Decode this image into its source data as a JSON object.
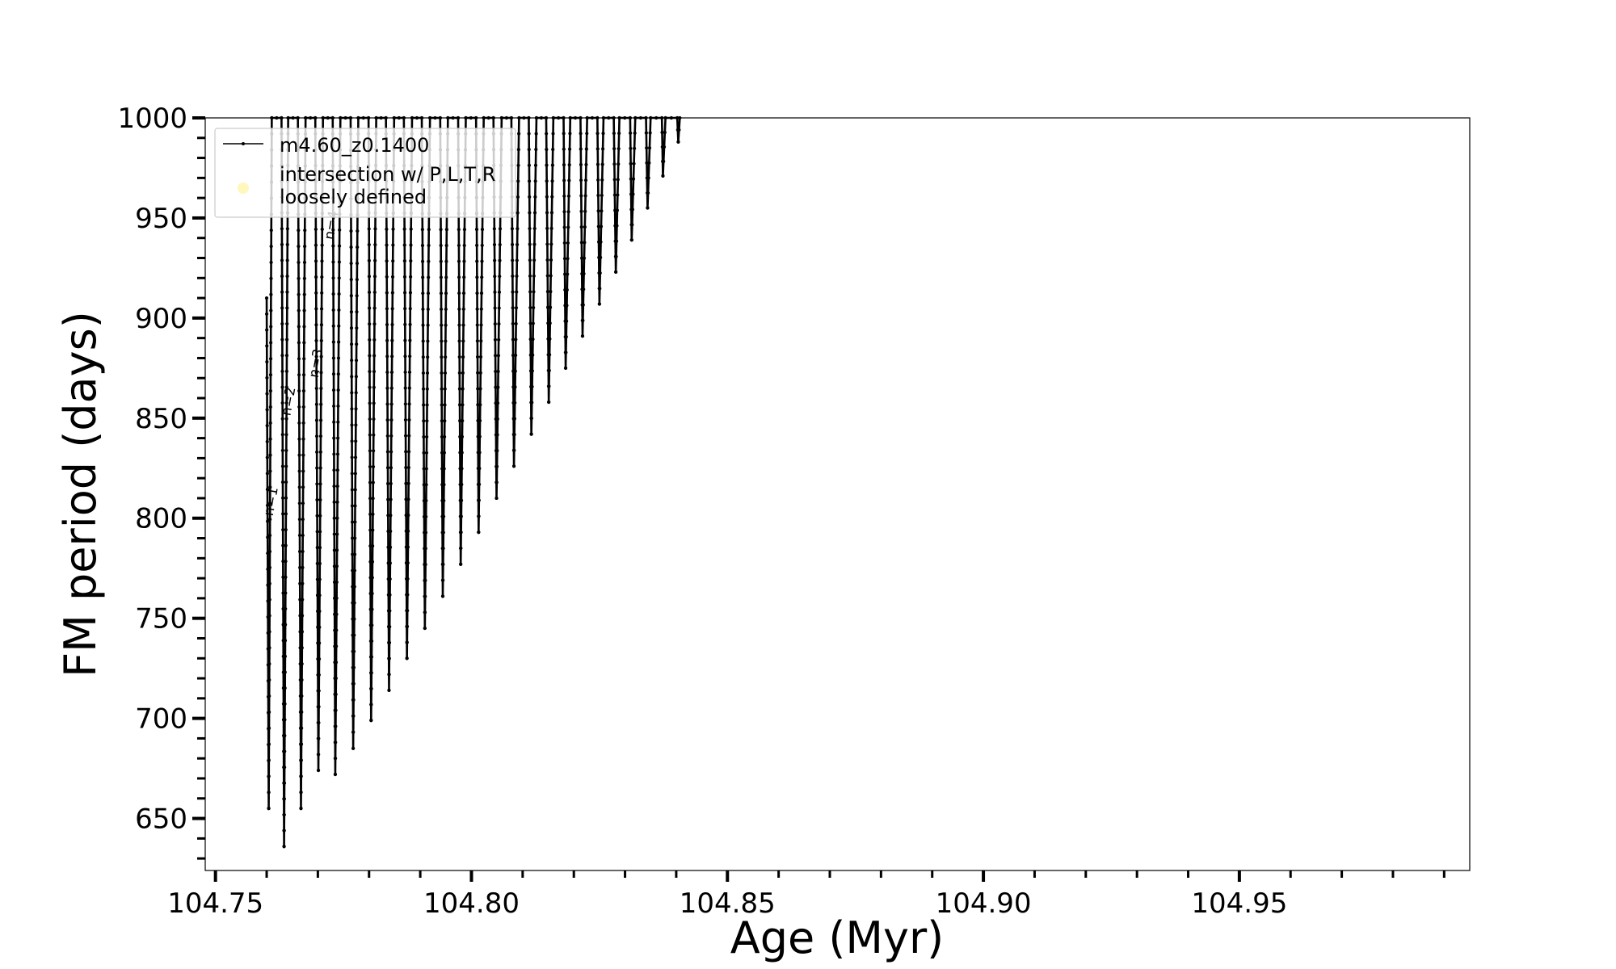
{
  "chart_data": {
    "type": "line",
    "title": "",
    "xlabel": "Age (Myr)",
    "ylabel": "FM period (days)",
    "xlim": [
      104.748,
      104.995
    ],
    "ylim": [
      624,
      1000
    ],
    "x_ticks": [
      104.75,
      104.8,
      104.85,
      104.9,
      104.95
    ],
    "x_tick_labels": [
      "104.75",
      "104.80",
      "104.85",
      "104.90",
      "104.95"
    ],
    "y_ticks": [
      650,
      700,
      750,
      800,
      850,
      900,
      950,
      1000
    ],
    "y_tick_labels": [
      "650",
      "700",
      "750",
      "800",
      "850",
      "900",
      "950",
      "1000"
    ],
    "grid": false,
    "legend_position": "top-left",
    "legend": [
      {
        "label": "m4.60_z0.1400",
        "marker": "line-dot",
        "color": "#000000"
      },
      {
        "label": "intersection w/ P,L,T,R\nloosely defined",
        "marker": "circle",
        "color": "#fff6b0"
      }
    ],
    "series": [
      {
        "name": "m4.60_z0.1400",
        "color": "#000000",
        "points": [
          [
            104.76,
            910
          ],
          [
            104.7604,
            655
          ],
          [
            104.761,
            1000
          ],
          [
            104.7629,
            1000
          ],
          [
            104.7634,
            636
          ],
          [
            104.7642,
            1000
          ],
          [
            104.7661,
            1000
          ],
          [
            104.7667,
            655
          ],
          [
            104.7676,
            1000
          ],
          [
            104.7695,
            1000
          ],
          [
            104.7701,
            674
          ],
          [
            104.771,
            1000
          ],
          [
            104.7729,
            1000
          ],
          [
            104.7734,
            672
          ],
          [
            104.7744,
            1000
          ],
          [
            104.7764,
            1000
          ],
          [
            104.7769,
            685
          ],
          [
            104.7779,
            1000
          ],
          [
            104.7799,
            1000
          ],
          [
            104.7804,
            699
          ],
          [
            104.7814,
            1000
          ],
          [
            104.7833,
            1000
          ],
          [
            104.7839,
            714
          ],
          [
            104.7849,
            1000
          ],
          [
            104.7868,
            1000
          ],
          [
            104.7874,
            730
          ],
          [
            104.7884,
            1000
          ],
          [
            104.7903,
            1000
          ],
          [
            104.7909,
            745
          ],
          [
            104.7919,
            1000
          ],
          [
            104.7939,
            1000
          ],
          [
            104.7944,
            761
          ],
          [
            104.7954,
            1000
          ],
          [
            104.7974,
            1000
          ],
          [
            104.7979,
            777
          ],
          [
            104.7989,
            1000
          ],
          [
            104.8009,
            1000
          ],
          [
            104.8014,
            793
          ],
          [
            104.8024,
            1000
          ],
          [
            104.8043,
            1000
          ],
          [
            104.8049,
            810
          ],
          [
            104.8059,
            1000
          ],
          [
            104.8078,
            1000
          ],
          [
            104.8083,
            826
          ],
          [
            104.8093,
            1000
          ],
          [
            104.8112,
            1000
          ],
          [
            104.8117,
            842
          ],
          [
            104.8127,
            1000
          ],
          [
            104.8146,
            1000
          ],
          [
            104.8151,
            858
          ],
          [
            104.816,
            1000
          ],
          [
            104.818,
            1000
          ],
          [
            104.8184,
            875
          ],
          [
            104.8193,
            1000
          ],
          [
            104.8213,
            1000
          ],
          [
            104.8217,
            891
          ],
          [
            104.8226,
            1000
          ],
          [
            104.8246,
            1000
          ],
          [
            104.825,
            907
          ],
          [
            104.8258,
            1000
          ],
          [
            104.8278,
            1000
          ],
          [
            104.8282,
            923
          ],
          [
            104.8289,
            1000
          ],
          [
            104.831,
            1000
          ],
          [
            104.8313,
            939
          ],
          [
            104.832,
            1000
          ],
          [
            104.8341,
            1000
          ],
          [
            104.8344,
            955
          ],
          [
            104.835,
            1000
          ],
          [
            104.8372,
            1000
          ],
          [
            104.8374,
            971
          ],
          [
            104.8379,
            1000
          ],
          [
            104.8402,
            1000
          ],
          [
            104.8404,
            988
          ],
          [
            104.8407,
            1000
          ]
        ]
      }
    ],
    "annotations": [
      {
        "text": "n=1",
        "x": 104.7617,
        "y": 808,
        "rotation": -80
      },
      {
        "text": "n=2",
        "x": 104.7651,
        "y": 858,
        "rotation": -80
      },
      {
        "text": "n=3",
        "x": 104.7705,
        "y": 877,
        "rotation": -80
      },
      {
        "text": "n=4",
        "x": 104.7735,
        "y": 946,
        "rotation": -80
      }
    ]
  }
}
